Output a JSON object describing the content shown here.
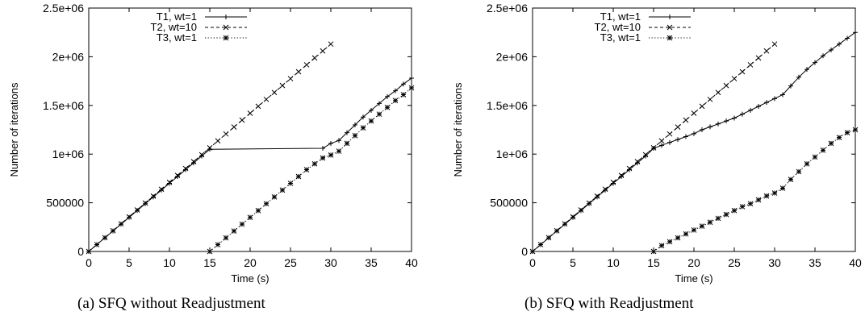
{
  "chart_data": [
    {
      "type": "line",
      "caption": "(a) SFQ without Readjustment",
      "xlabel": "Time (s)",
      "ylabel": "Number of iterations",
      "xlim": [
        0,
        40
      ],
      "ylim": [
        0,
        2500000
      ],
      "xticks": [
        0,
        5,
        10,
        15,
        20,
        25,
        30,
        35,
        40
      ],
      "yticks": [
        0,
        500000,
        1000000,
        1500000,
        2000000,
        2500000
      ],
      "ytick_labels": [
        "0",
        "500000",
        "1e+06",
        "1.5e+06",
        "2e+06",
        "2.5e+06"
      ],
      "grid": false,
      "legend": "top-left",
      "series": [
        {
          "name": "T1, wt=1",
          "marker": "+",
          "dash": "solid",
          "x": [
            0,
            1,
            2,
            3,
            4,
            5,
            6,
            7,
            8,
            9,
            10,
            11,
            12,
            13,
            14,
            15,
            29,
            30,
            31,
            32,
            33,
            34,
            35,
            36,
            37,
            38,
            39,
            40
          ],
          "y": [
            0,
            70000,
            140000,
            210000,
            280000,
            350000,
            420000,
            490000,
            560000,
            630000,
            700000,
            770000,
            840000,
            910000,
            980000,
            1050000,
            1060000,
            1110000,
            1140000,
            1220000,
            1300000,
            1380000,
            1450000,
            1520000,
            1590000,
            1650000,
            1720000,
            1780000
          ]
        },
        {
          "name": "T2, wt=10",
          "marker": "x",
          "dash": "dashed",
          "x": [
            0,
            1,
            2,
            3,
            4,
            5,
            6,
            7,
            8,
            9,
            10,
            11,
            12,
            13,
            14,
            15,
            16,
            17,
            18,
            19,
            20,
            21,
            22,
            23,
            24,
            25,
            26,
            27,
            28,
            29,
            30
          ],
          "y": [
            0,
            71000,
            142000,
            213000,
            284000,
            355000,
            426000,
            497000,
            568000,
            639000,
            710000,
            781000,
            852000,
            923000,
            994000,
            1065000,
            1136000,
            1207000,
            1278000,
            1349000,
            1420000,
            1491000,
            1562000,
            1633000,
            1704000,
            1775000,
            1846000,
            1917000,
            1988000,
            2059000,
            2130000
          ]
        },
        {
          "name": "T3, wt=1",
          "marker": "*",
          "dash": "dotted",
          "x": [
            15,
            16,
            17,
            18,
            19,
            20,
            21,
            22,
            23,
            24,
            25,
            26,
            27,
            28,
            29,
            30,
            31,
            32,
            33,
            34,
            35,
            36,
            37,
            38,
            39,
            40
          ],
          "y": [
            0,
            70000,
            140000,
            210000,
            280000,
            350000,
            420000,
            490000,
            560000,
            630000,
            700000,
            770000,
            840000,
            900000,
            960000,
            990000,
            1030000,
            1110000,
            1190000,
            1270000,
            1340000,
            1410000,
            1480000,
            1550000,
            1610000,
            1680000
          ]
        }
      ]
    },
    {
      "type": "line",
      "caption": "(b) SFQ with Readjustment",
      "xlabel": "Time (s)",
      "ylabel": "Number of iterations",
      "xlim": [
        0,
        40
      ],
      "ylim": [
        0,
        2500000
      ],
      "xticks": [
        0,
        5,
        10,
        15,
        20,
        25,
        30,
        35,
        40
      ],
      "yticks": [
        0,
        500000,
        1000000,
        1500000,
        2000000,
        2500000
      ],
      "ytick_labels": [
        "0",
        "500000",
        "1e+06",
        "1.5e+06",
        "2e+06",
        "2.5e+06"
      ],
      "grid": false,
      "legend": "top-left",
      "series": [
        {
          "name": "T1, wt=1",
          "marker": "+",
          "dash": "solid",
          "x": [
            0,
            1,
            2,
            3,
            4,
            5,
            6,
            7,
            8,
            9,
            10,
            11,
            12,
            13,
            14,
            15,
            16,
            17,
            18,
            19,
            20,
            21,
            22,
            23,
            24,
            25,
            26,
            27,
            28,
            29,
            30,
            31,
            32,
            33,
            34,
            35,
            36,
            37,
            38,
            39,
            40
          ],
          "y": [
            0,
            70000,
            140000,
            210000,
            280000,
            350000,
            420000,
            490000,
            560000,
            630000,
            700000,
            770000,
            840000,
            910000,
            980000,
            1060000,
            1090000,
            1120000,
            1150000,
            1180000,
            1210000,
            1250000,
            1280000,
            1310000,
            1340000,
            1370000,
            1410000,
            1450000,
            1490000,
            1530000,
            1570000,
            1610000,
            1700000,
            1790000,
            1870000,
            1940000,
            2010000,
            2070000,
            2130000,
            2190000,
            2250000
          ]
        },
        {
          "name": "T2, wt=10",
          "marker": "x",
          "dash": "dashed",
          "x": [
            0,
            1,
            2,
            3,
            4,
            5,
            6,
            7,
            8,
            9,
            10,
            11,
            12,
            13,
            14,
            15,
            16,
            17,
            18,
            19,
            20,
            21,
            22,
            23,
            24,
            25,
            26,
            27,
            28,
            29,
            30
          ],
          "y": [
            0,
            71000,
            142000,
            213000,
            284000,
            355000,
            426000,
            497000,
            568000,
            639000,
            710000,
            781000,
            852000,
            923000,
            994000,
            1065000,
            1136000,
            1207000,
            1278000,
            1349000,
            1420000,
            1491000,
            1562000,
            1633000,
            1704000,
            1775000,
            1846000,
            1917000,
            1988000,
            2059000,
            2130000
          ]
        },
        {
          "name": "T3, wt=1",
          "marker": "*",
          "dash": "dotted",
          "x": [
            15,
            16,
            17,
            18,
            19,
            20,
            21,
            22,
            23,
            24,
            25,
            26,
            27,
            28,
            29,
            30,
            31,
            32,
            33,
            34,
            35,
            36,
            37,
            38,
            39,
            40
          ],
          "y": [
            0,
            60000,
            100000,
            140000,
            180000,
            220000,
            260000,
            300000,
            340000,
            380000,
            420000,
            460000,
            490000,
            530000,
            570000,
            600000,
            650000,
            740000,
            820000,
            900000,
            970000,
            1040000,
            1110000,
            1170000,
            1220000,
            1250000
          ]
        }
      ]
    }
  ]
}
